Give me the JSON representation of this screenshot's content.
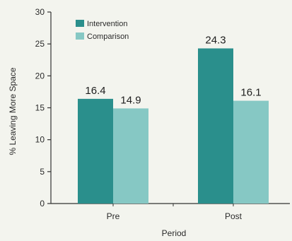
{
  "chart_data": {
    "type": "bar",
    "title": "",
    "xlabel": "Period",
    "ylabel": "% Leaving More Space",
    "categories": [
      "Pre",
      "Post"
    ],
    "series": [
      {
        "name": "Intervention",
        "values": [
          16.4,
          24.3
        ],
        "color": "#2a8f8c"
      },
      {
        "name": "Comparison",
        "values": [
          14.9,
          16.1
        ],
        "color": "#86c8c4"
      }
    ],
    "ylim": [
      0,
      30
    ],
    "yticks": [
      0,
      5,
      10,
      15,
      20,
      25,
      30
    ],
    "data_labels": [
      "16.4",
      "14.9",
      "24.3",
      "16.1"
    ],
    "legend_position": "top-left",
    "grid": false
  }
}
